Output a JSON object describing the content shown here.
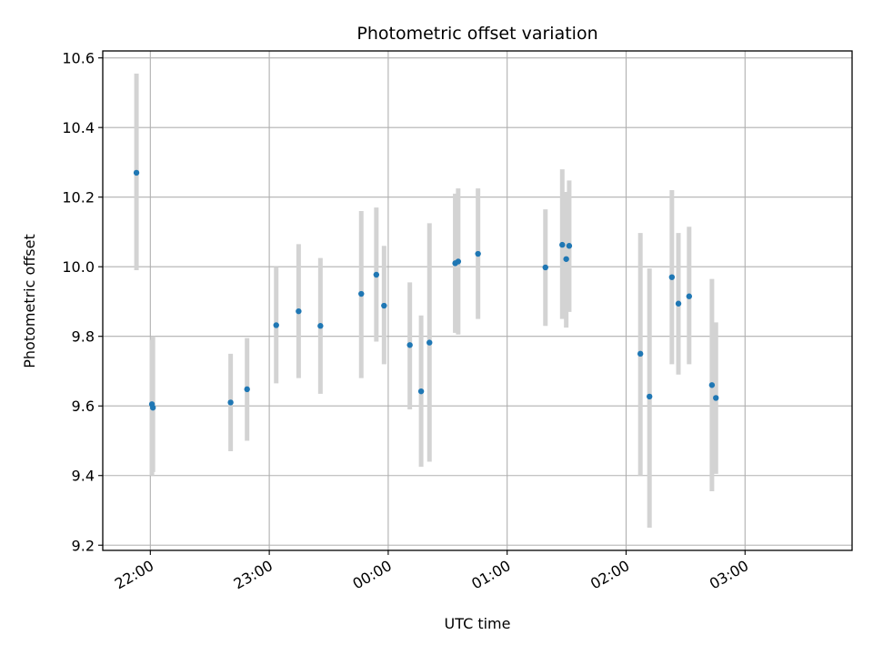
{
  "chart_data": {
    "type": "scatter",
    "title": "Photometric offset variation",
    "xlabel": "UTC time",
    "ylabel": "Photometric offset",
    "x_unit": "minutes since 22:00 UTC",
    "xlim": [
      -24,
      354
    ],
    "ylim": [
      9.185,
      10.62
    ],
    "grid": true,
    "legend": "none",
    "x_ticks": [
      {
        "value": 0,
        "label": "22:00"
      },
      {
        "value": 60,
        "label": "23:00"
      },
      {
        "value": 120,
        "label": "00:00"
      },
      {
        "value": 180,
        "label": "01:00"
      },
      {
        "value": 240,
        "label": "02:00"
      },
      {
        "value": 300,
        "label": "03:00"
      }
    ],
    "y_ticks": [
      {
        "value": 9.2,
        "label": "9.2"
      },
      {
        "value": 9.4,
        "label": "9.4"
      },
      {
        "value": 9.6,
        "label": "9.6"
      },
      {
        "value": 9.8,
        "label": "9.8"
      },
      {
        "value": 10.0,
        "label": "10.0"
      },
      {
        "value": 10.2,
        "label": "10.2"
      },
      {
        "value": 10.4,
        "label": "10.4"
      },
      {
        "value": 10.6,
        "label": "10.6"
      }
    ],
    "marker_color": "#1f77b4",
    "errorbar_color": "#d3d3d3",
    "points": [
      {
        "x": -7.0,
        "y": 10.27,
        "lo": 9.99,
        "hi": 10.555
      },
      {
        "x": 0.8,
        "y": 9.605,
        "lo": 9.4,
        "hi": 9.79
      },
      {
        "x": 1.3,
        "y": 9.595,
        "lo": 9.41,
        "hi": 9.8
      },
      {
        "x": 40.5,
        "y": 9.61,
        "lo": 9.47,
        "hi": 9.75
      },
      {
        "x": 48.8,
        "y": 9.648,
        "lo": 9.5,
        "hi": 9.795
      },
      {
        "x": 63.5,
        "y": 9.832,
        "lo": 9.665,
        "hi": 10.0
      },
      {
        "x": 74.8,
        "y": 9.872,
        "lo": 9.68,
        "hi": 10.065
      },
      {
        "x": 85.8,
        "y": 9.83,
        "lo": 9.635,
        "hi": 10.025
      },
      {
        "x": 106.4,
        "y": 9.922,
        "lo": 9.68,
        "hi": 10.16
      },
      {
        "x": 114.0,
        "y": 9.977,
        "lo": 9.785,
        "hi": 10.17
      },
      {
        "x": 117.9,
        "y": 9.888,
        "lo": 9.72,
        "hi": 10.06
      },
      {
        "x": 130.9,
        "y": 9.775,
        "lo": 9.59,
        "hi": 9.955
      },
      {
        "x": 136.6,
        "y": 9.642,
        "lo": 9.425,
        "hi": 9.86
      },
      {
        "x": 140.8,
        "y": 9.782,
        "lo": 9.44,
        "hi": 10.125
      },
      {
        "x": 153.8,
        "y": 10.01,
        "lo": 9.81,
        "hi": 10.21
      },
      {
        "x": 155.3,
        "y": 10.015,
        "lo": 9.805,
        "hi": 10.225
      },
      {
        "x": 165.3,
        "y": 10.037,
        "lo": 9.85,
        "hi": 10.225
      },
      {
        "x": 199.3,
        "y": 9.998,
        "lo": 9.83,
        "hi": 10.165
      },
      {
        "x": 207.8,
        "y": 10.063,
        "lo": 9.85,
        "hi": 10.28
      },
      {
        "x": 209.8,
        "y": 10.022,
        "lo": 9.825,
        "hi": 10.215
      },
      {
        "x": 211.3,
        "y": 10.06,
        "lo": 9.87,
        "hi": 10.248
      },
      {
        "x": 247.2,
        "y": 9.75,
        "lo": 9.4,
        "hi": 10.097
      },
      {
        "x": 251.8,
        "y": 9.627,
        "lo": 9.25,
        "hi": 9.995
      },
      {
        "x": 263.1,
        "y": 9.97,
        "lo": 9.72,
        "hi": 10.22
      },
      {
        "x": 266.4,
        "y": 9.894,
        "lo": 9.69,
        "hi": 10.097
      },
      {
        "x": 271.8,
        "y": 9.915,
        "lo": 9.72,
        "hi": 10.115
      },
      {
        "x": 283.3,
        "y": 9.66,
        "lo": 9.355,
        "hi": 9.965
      },
      {
        "x": 285.3,
        "y": 9.623,
        "lo": 9.405,
        "hi": 9.84
      }
    ]
  }
}
